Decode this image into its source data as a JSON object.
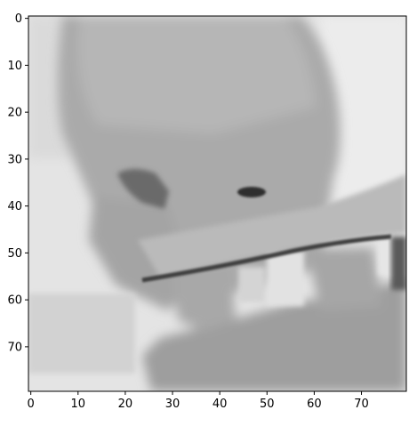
{
  "figure": {
    "kind": "grayscale-image-plot",
    "subject": "blurry low-resolution grayscale photo of a hand holding an object",
    "colormap": "gray",
    "image_shape": [
      80,
      80
    ],
    "xlim": [
      0,
      79
    ],
    "ylim": [
      79,
      0
    ],
    "x_ticks": [
      "0",
      "10",
      "20",
      "30",
      "40",
      "50",
      "60",
      "70"
    ],
    "y_ticks": [
      "0",
      "10",
      "20",
      "30",
      "40",
      "50",
      "60",
      "70"
    ]
  }
}
